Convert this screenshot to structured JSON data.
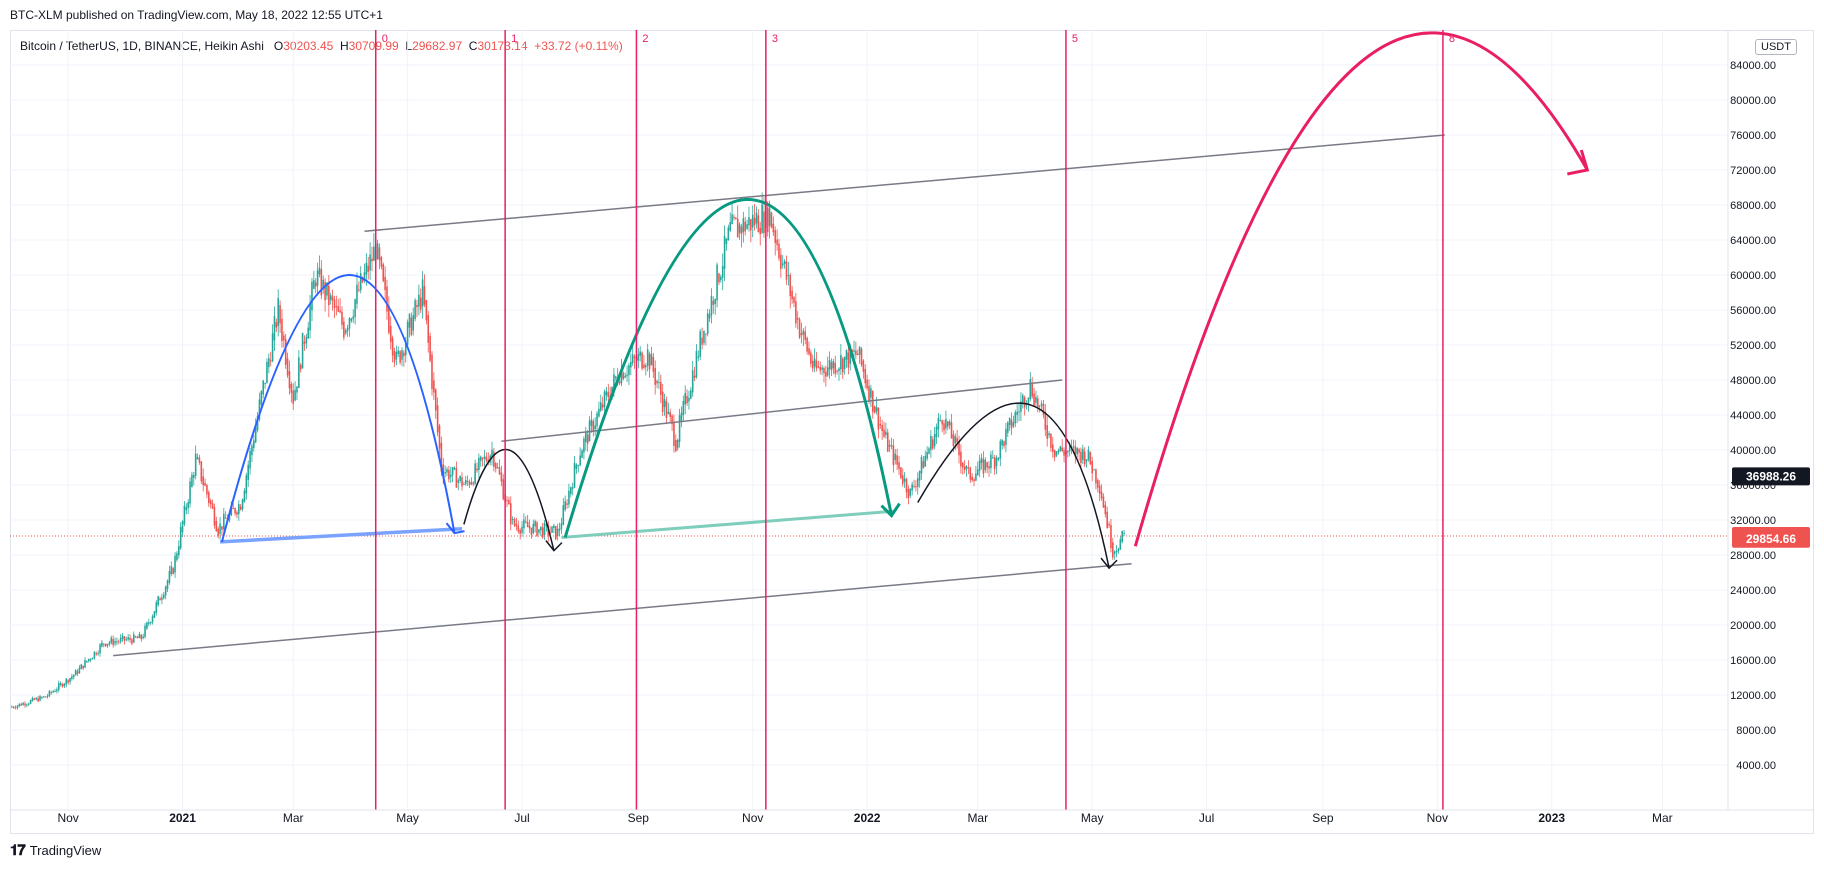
{
  "header": {
    "published": "BTC-XLM published on TradingView.com, May 18, 2022 12:55 UTC+1",
    "symbol": "Bitcoin / TetherUS, 1D, BINANCE, Heikin Ashi",
    "ohlc": {
      "o_label": "O",
      "o": "30203.45",
      "h_label": "H",
      "h": "30709.99",
      "l_label": "L",
      "l": "29682.97",
      "c_label": "C",
      "c": "30173.14",
      "change": "+33.72 (+0.11%)"
    },
    "currency": "USDT"
  },
  "footer": {
    "brand": "TradingView"
  },
  "colors": {
    "up": "#26a69a",
    "down": "#ef5350",
    "cycle_line": "#e91e63",
    "channel": "#787b86",
    "blue_arc": "#2962ff",
    "teal_arc": "#089981",
    "black_arc": "#131722",
    "pink_arc": "#e91e63"
  },
  "chart_data": {
    "type": "candlestick",
    "style": "Heikin Ashi",
    "interval": "1D",
    "ylim": [
      0,
      88000
    ],
    "y_ticks": [
      "4000.00",
      "8000.00",
      "12000.00",
      "16000.00",
      "20000.00",
      "24000.00",
      "28000.00",
      "32000.00",
      "36000.00",
      "40000.00",
      "44000.00",
      "48000.00",
      "52000.00",
      "56000.00",
      "60000.00",
      "64000.00",
      "68000.00",
      "72000.00",
      "76000.00",
      "80000.00",
      "84000.00"
    ],
    "x_labels": [
      "Nov",
      "2021",
      "Mar",
      "May",
      "Jul",
      "Sep",
      "Nov",
      "2022",
      "Mar",
      "May",
      "Jul",
      "Sep",
      "Nov",
      "2023",
      "Mar"
    ],
    "bold_x_labels": [
      "2021",
      "2022",
      "2023"
    ],
    "price_labels": [
      {
        "text": "36988.26",
        "value": 36988.26,
        "color": "#131722"
      },
      {
        "text": "30173.14",
        "value": 30173.14,
        "color": "#ef5350"
      },
      {
        "text": "29854.66",
        "value": 29854.66,
        "color": "#ef5350"
      }
    ],
    "current_price": 30173.14,
    "cycle_markers": [
      {
        "label": "0",
        "date": "2021-04-14"
      },
      {
        "label": "1",
        "date": "2021-06-22"
      },
      {
        "label": "2",
        "date": "2021-08-31"
      },
      {
        "label": "3",
        "date": "2021-11-08"
      },
      {
        "label": "5",
        "date": "2022-04-17"
      },
      {
        "label": "8",
        "date": "2022-11-04"
      }
    ],
    "price_path": [
      [
        "2020-10-01",
        10600
      ],
      [
        "2020-10-20",
        11800
      ],
      [
        "2020-11-05",
        14500
      ],
      [
        "2020-11-20",
        18000
      ],
      [
        "2020-12-10",
        18500
      ],
      [
        "2020-12-27",
        26500
      ],
      [
        "2021-01-08",
        39000
      ],
      [
        "2021-01-20",
        31000
      ],
      [
        "2021-02-01",
        34000
      ],
      [
        "2021-02-21",
        56000
      ],
      [
        "2021-03-01",
        46000
      ],
      [
        "2021-03-13",
        60000
      ],
      [
        "2021-03-28",
        54000
      ],
      [
        "2021-04-14",
        63000
      ],
      [
        "2021-04-25",
        50000
      ],
      [
        "2021-05-09",
        58000
      ],
      [
        "2021-05-19",
        38000
      ],
      [
        "2021-06-01",
        36000
      ],
      [
        "2021-06-15",
        40000
      ],
      [
        "2021-06-26",
        31500
      ],
      [
        "2021-07-20",
        30500
      ],
      [
        "2021-08-01",
        40000
      ],
      [
        "2021-08-22",
        49000
      ],
      [
        "2021-09-06",
        51000
      ],
      [
        "2021-09-21",
        41000
      ],
      [
        "2021-10-06",
        54000
      ],
      [
        "2021-10-20",
        65000
      ],
      [
        "2021-11-10",
        67000
      ],
      [
        "2021-11-26",
        54000
      ],
      [
        "2021-12-04",
        49000
      ],
      [
        "2021-12-27",
        51000
      ],
      [
        "2022-01-10",
        41500
      ],
      [
        "2022-01-24",
        35000
      ],
      [
        "2022-02-10",
        44000
      ],
      [
        "2022-02-24",
        37000
      ],
      [
        "2022-03-10",
        39000
      ],
      [
        "2022-03-29",
        47500
      ],
      [
        "2022-04-11",
        40000
      ],
      [
        "2022-04-28",
        39500
      ],
      [
        "2022-05-05",
        36000
      ],
      [
        "2022-05-12",
        28500
      ],
      [
        "2022-05-18",
        30173
      ]
    ],
    "drawings": {
      "channel_top": [
        [
          "2021-04-08",
          65000
        ],
        [
          "2022-11-05",
          76000
        ]
      ],
      "channel_bottom": [
        [
          "2020-11-25",
          16500
        ],
        [
          "2022-05-22",
          27000
        ]
      ],
      "inner_channel_top": [
        [
          "2021-06-20",
          41000
        ],
        [
          "2022-04-15",
          48000
        ]
      ],
      "teal_base": [
        [
          "2021-07-22",
          30000
        ],
        [
          "2022-01-15",
          33000
        ]
      ],
      "blue_base": [
        [
          "2021-01-21",
          29500
        ],
        [
          "2021-05-30",
          31000
        ]
      ]
    }
  }
}
